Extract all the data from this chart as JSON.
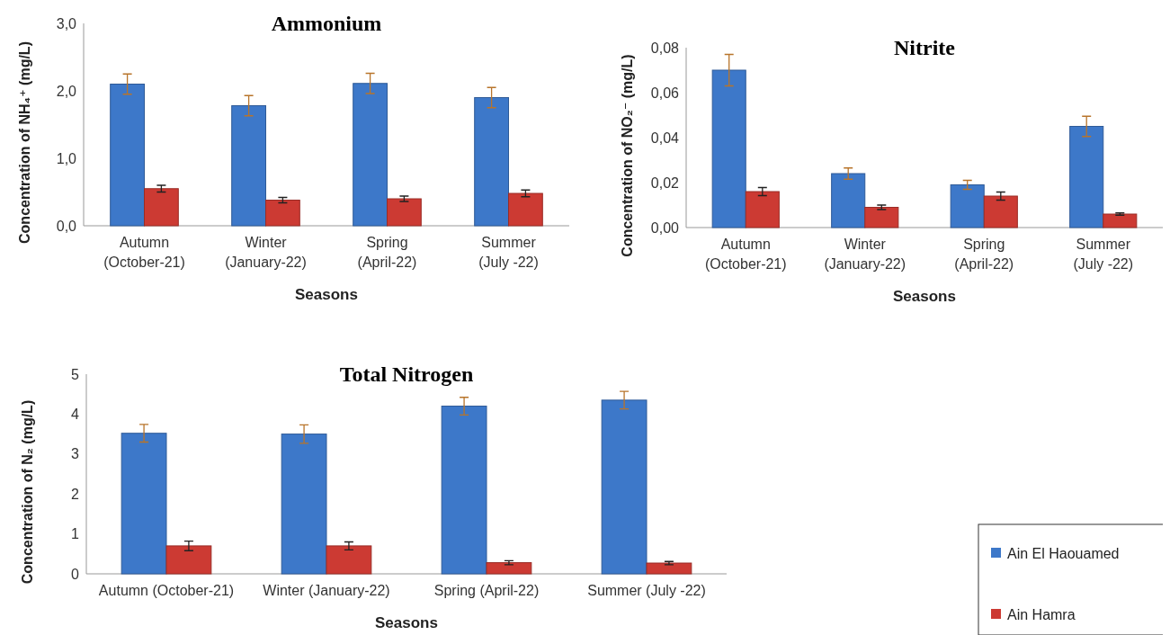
{
  "chart_data": [
    {
      "type": "bar",
      "title": "Ammonium",
      "xlabel": "Seasons",
      "ylabel": "Concentration of NH₄⁺ (mg/L)",
      "categories": [
        "Autumn (October-21)",
        "Winter (January-22)",
        "Spring (April-22)",
        "Summer (July -22)"
      ],
      "series": [
        {
          "color": "#3d78c9",
          "values": [
            2.1,
            1.78,
            2.11,
            1.9
          ],
          "errors": [
            0.15,
            0.15,
            0.15,
            0.15
          ]
        },
        {
          "color": "#cc3a33",
          "values": [
            0.55,
            0.38,
            0.4,
            0.48
          ],
          "errors": [
            0.05,
            0.04,
            0.04,
            0.05
          ]
        }
      ],
      "ylim": [
        0,
        3
      ],
      "yticks": [
        {
          "value": 0,
          "label": "0,0"
        },
        {
          "value": 1,
          "label": "1,0"
        },
        {
          "value": 2,
          "label": "2,0"
        },
        {
          "value": 3,
          "label": "3,0"
        }
      ],
      "grid": false
    },
    {
      "type": "bar",
      "title": "Nitrite",
      "xlabel": "Seasons",
      "ylabel": "Concentration of NO₂⁻ (mg/L)",
      "categories": [
        "Autumn (October-21)",
        "Winter (January-22)",
        "Spring (April-22)",
        "Summer (July -22)"
      ],
      "series": [
        {
          "color": "#3d78c9",
          "values": [
            0.07,
            0.024,
            0.019,
            0.045
          ],
          "errors": [
            0.007,
            0.0025,
            0.002,
            0.0045
          ]
        },
        {
          "color": "#cc3a33",
          "values": [
            0.016,
            0.009,
            0.014,
            0.006
          ],
          "errors": [
            0.0018,
            0.001,
            0.0018,
            0.0005
          ]
        }
      ],
      "ylim": [
        0,
        0.08
      ],
      "yticks": [
        {
          "value": 0,
          "label": "0,00"
        },
        {
          "value": 0.02,
          "label": "0,02"
        },
        {
          "value": 0.04,
          "label": "0,04"
        },
        {
          "value": 0.06,
          "label": "0,06"
        },
        {
          "value": 0.08,
          "label": "0,08"
        }
      ],
      "grid": false
    },
    {
      "type": "bar",
      "title": "Total Nitrogen",
      "xlabel": "Seasons",
      "ylabel": "Concentration of N₂  (mg/L)",
      "categories": [
        "Autumn (October-21)",
        "Winter (January-22)",
        "Spring (April-22)",
        "Summer (July -22)"
      ],
      "series": [
        {
          "name": "Ain El Haouamed",
          "color": "#3d78c9",
          "values": [
            3.52,
            3.5,
            4.2,
            4.35
          ],
          "errors": [
            0.22,
            0.23,
            0.22,
            0.22
          ]
        },
        {
          "name": "Ain Hamra",
          "color": "#cc3a33",
          "values": [
            0.7,
            0.7,
            0.28,
            0.27
          ],
          "errors": [
            0.12,
            0.1,
            0.05,
            0.04
          ]
        }
      ],
      "ylim": [
        0,
        5
      ],
      "yticks": [
        0,
        1,
        2,
        3,
        4,
        5
      ],
      "grid": false,
      "legend": "bottom right"
    }
  ]
}
